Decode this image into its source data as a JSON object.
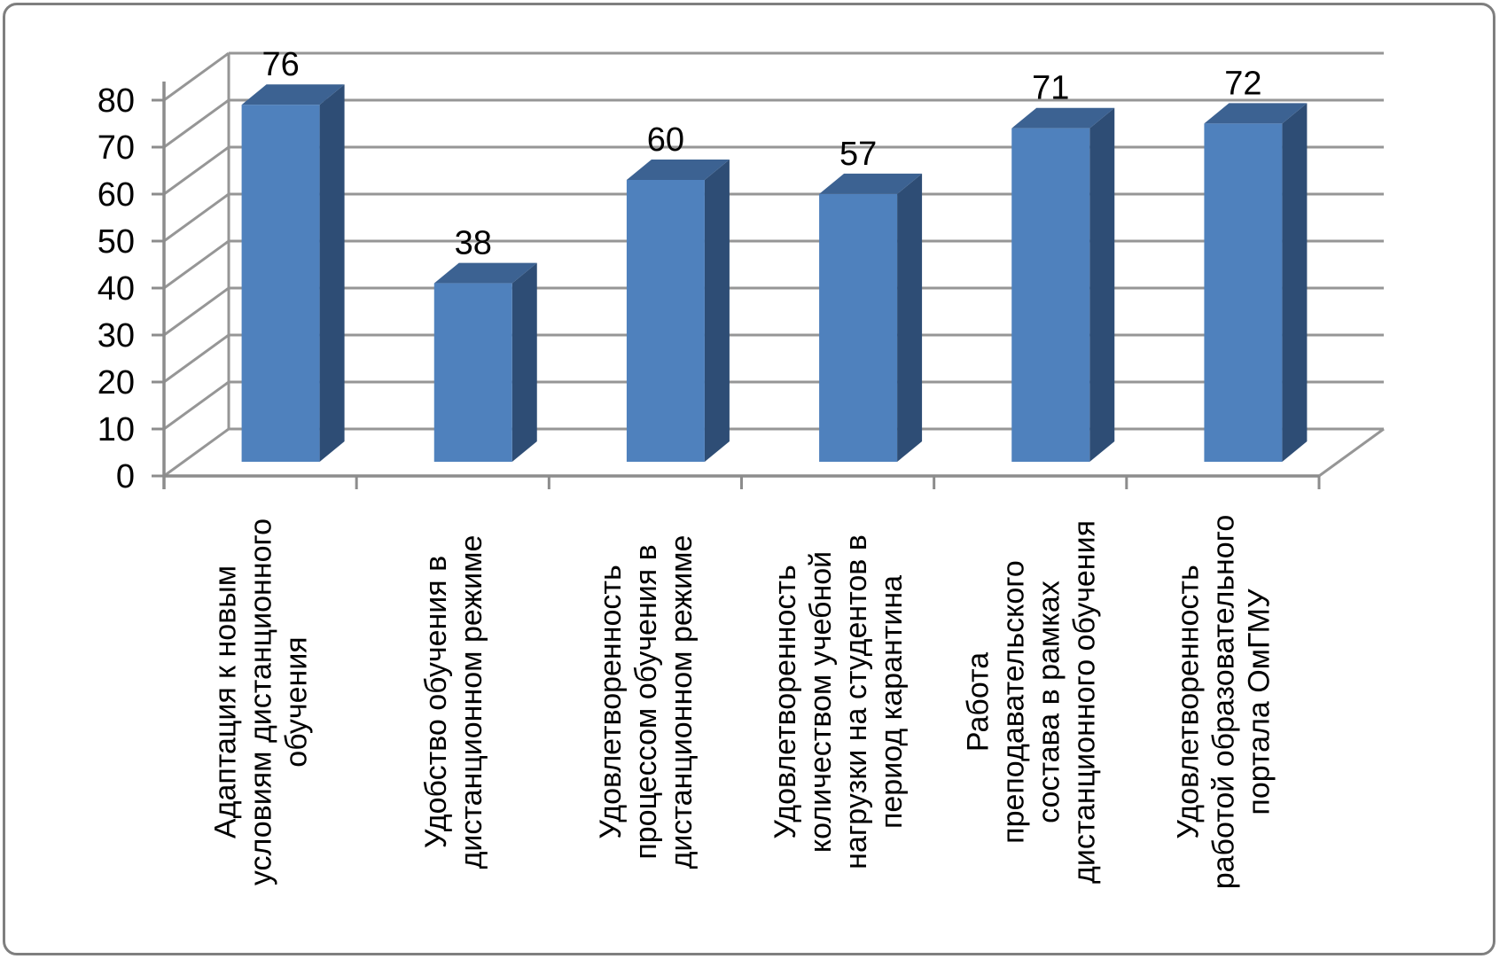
{
  "frame": {
    "background_color": "#ffffff",
    "border_color": "#7f7f7f"
  },
  "chart_data": {
    "type": "bar",
    "projection": "3d-column",
    "title": "",
    "xlabel": "",
    "ylabel": "",
    "categories": [
      "Адаптация к новым условиям дистанционного обучения",
      "Удобство обучения в дистанционном режиме",
      "Удовлетворенность процессом обучения в дистанционном режиме",
      "Удовлетворенность количеством учебной нагрузки на студентов в период карантина",
      "Работа преподавательского состава в рамках дистанционного обучения",
      "Удовлетворенность работой образовательного портала ОмГМУ"
    ],
    "categories_wrapped": [
      [
        "Адаптация к новым",
        "условиям дистанционного",
        "обучения"
      ],
      [
        "Удобство обучения в",
        "дистанционном режиме"
      ],
      [
        "Удовлетворенность",
        "процессом обучения в",
        "дистанционном режиме"
      ],
      [
        "Удовлетворенность",
        "количеством учебной",
        "нагрузки на студентов в",
        "период карантина"
      ],
      [
        "Работа",
        "преподавательского",
        "состава в рамках",
        "дистанционного обучения"
      ],
      [
        "Удовлетворенность",
        "работой образовательного",
        "портала ОмГМУ"
      ]
    ],
    "values": [
      76,
      38,
      60,
      57,
      71,
      72
    ],
    "data_labels": [
      "76",
      "38",
      "60",
      "57",
      "71",
      "72"
    ],
    "ylim": [
      0,
      80
    ],
    "ytick_interval": 10,
    "ytick_labels": [
      "0",
      "10",
      "20",
      "30",
      "40",
      "50",
      "60",
      "70",
      "80"
    ],
    "grid": true,
    "legend": false,
    "colors": {
      "bar_front": "#4f81bd",
      "bar_top": "#3c6292",
      "bar_side": "#2e4d75",
      "gridline": "#969696",
      "axis": "#8c8c8c",
      "text": "#000000"
    }
  }
}
